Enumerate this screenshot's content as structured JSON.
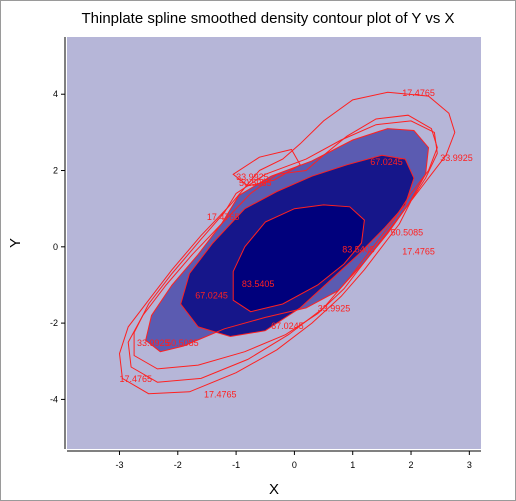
{
  "chart_data": {
    "type": "contour",
    "title": "Thinplate spline smoothed density contour plot of Y vs X",
    "xlabel": "X",
    "ylabel": "Y",
    "xlim": [
      -3.9,
      3.2
    ],
    "ylim": [
      -5.3,
      5.5
    ],
    "x_ticks": [
      -3,
      -2,
      -1,
      0,
      1,
      2,
      3
    ],
    "y_ticks": [
      -4,
      -2,
      0,
      2,
      4
    ],
    "grid": false,
    "colors": {
      "background": "#b6b6d8",
      "contour_line": "#ff2020",
      "fill_level_1": "#5b5bb1",
      "fill_level_2": "#16168a",
      "fill_level_3": "#00007c"
    },
    "levels": [
      {
        "value": 17.4765,
        "filled": false,
        "labels": [
          {
            "text": "17.4765",
            "x": 1.85,
            "y": 3.95
          },
          {
            "text": "17.4765",
            "x": -1.5,
            "y": 0.7
          },
          {
            "text": "17.4765",
            "x": 1.85,
            "y": -0.2
          },
          {
            "text": "17.4765",
            "x": -3.0,
            "y": -3.55
          },
          {
            "text": "17.4765",
            "x": -1.55,
            "y": -3.95
          }
        ],
        "contours": [
          [
            [
              -0.6,
              2.0
            ],
            [
              -0.2,
              2.3
            ],
            [
              0.1,
              2.7
            ],
            [
              0.5,
              3.3
            ],
            [
              1.0,
              3.85
            ],
            [
              1.6,
              4.05
            ],
            [
              2.3,
              3.95
            ],
            [
              2.65,
              3.5
            ],
            [
              2.75,
              3.0
            ],
            [
              2.6,
              2.4
            ],
            [
              2.3,
              1.8
            ],
            [
              2.0,
              1.2
            ],
            [
              1.8,
              0.6
            ],
            [
              1.5,
              0.0
            ],
            [
              1.2,
              -0.6
            ],
            [
              0.8,
              -1.3
            ],
            [
              0.3,
              -2.0
            ],
            [
              -0.3,
              -2.7
            ],
            [
              -1.0,
              -3.3
            ],
            [
              -1.8,
              -3.8
            ],
            [
              -2.5,
              -3.85
            ],
            [
              -2.95,
              -3.45
            ],
            [
              -3.0,
              -2.8
            ],
            [
              -2.85,
              -2.1
            ],
            [
              -2.5,
              -1.4
            ],
            [
              -2.1,
              -0.6
            ],
            [
              -1.6,
              0.3
            ],
            [
              -1.1,
              1.1
            ],
            [
              -0.6,
              2.0
            ]
          ],
          [
            [
              0.2,
              2.0
            ],
            [
              0.5,
              2.4
            ],
            [
              0.9,
              2.9
            ],
            [
              1.4,
              3.35
            ],
            [
              1.95,
              3.45
            ],
            [
              2.35,
              3.1
            ],
            [
              2.45,
              2.6
            ],
            [
              2.3,
              2.0
            ],
            [
              2.0,
              1.4
            ],
            [
              1.7,
              0.7
            ],
            [
              1.35,
              0.0
            ],
            [
              0.95,
              -0.8
            ],
            [
              0.5,
              -1.6
            ],
            [
              -0.1,
              -2.3
            ],
            [
              -0.8,
              -2.95
            ],
            [
              -1.6,
              -3.45
            ],
            [
              -2.35,
              -3.55
            ],
            [
              -2.8,
              -3.15
            ],
            [
              -2.85,
              -2.5
            ],
            [
              -2.6,
              -1.8
            ],
            [
              -2.2,
              -1.0
            ],
            [
              -1.75,
              -0.2
            ],
            [
              -1.25,
              0.6
            ],
            [
              -0.75,
              1.4
            ],
            [
              -0.3,
              1.9
            ],
            [
              0.2,
              2.0
            ]
          ],
          [
            [
              -1.05,
              1.9
            ],
            [
              -0.6,
              2.35
            ],
            [
              -0.05,
              2.55
            ],
            [
              0.1,
              2.15
            ],
            [
              -0.35,
              1.75
            ],
            [
              -0.8,
              1.6
            ],
            [
              -1.05,
              1.9
            ]
          ]
        ]
      },
      {
        "value": 33.9925,
        "filled": false,
        "labels": [
          {
            "text": "33.9925",
            "x": -1.0,
            "y": 1.75
          },
          {
            "text": "33.9925",
            "x": 2.5,
            "y": 2.25
          },
          {
            "text": "33.9925",
            "x": 0.4,
            "y": -1.7
          },
          {
            "text": "33.9925",
            "x": -2.7,
            "y": -2.6
          }
        ],
        "contours": [
          [
            [
              -1.0,
              1.4
            ],
            [
              -0.5,
              1.9
            ],
            [
              0.2,
              2.3
            ],
            [
              0.8,
              2.8
            ],
            [
              1.4,
              3.2
            ],
            [
              2.0,
              3.3
            ],
            [
              2.4,
              3.0
            ],
            [
              2.45,
              2.45
            ],
            [
              2.25,
              1.8
            ],
            [
              1.95,
              1.1
            ],
            [
              1.6,
              0.4
            ],
            [
              1.25,
              -0.3
            ],
            [
              0.85,
              -1.1
            ],
            [
              0.4,
              -1.75
            ],
            [
              -0.15,
              -2.3
            ],
            [
              -0.85,
              -2.75
            ],
            [
              -1.65,
              -3.1
            ],
            [
              -2.35,
              -3.2
            ],
            [
              -2.75,
              -2.85
            ],
            [
              -2.75,
              -2.25
            ],
            [
              -2.5,
              -1.5
            ],
            [
              -2.1,
              -0.7
            ],
            [
              -1.6,
              0.2
            ],
            [
              -1.2,
              0.9
            ],
            [
              -1.0,
              1.4
            ]
          ]
        ]
      },
      {
        "value": 50.5085,
        "filled": true,
        "fill": "#5b5bb1",
        "labels": [
          {
            "text": "50.5085",
            "x": -0.95,
            "y": 1.6
          },
          {
            "text": "50.5085",
            "x": 1.65,
            "y": 0.3
          },
          {
            "text": "50.5085",
            "x": -2.2,
            "y": -2.6
          }
        ],
        "contours": [
          [
            [
              -0.95,
              1.35
            ],
            [
              -0.4,
              1.85
            ],
            [
              0.3,
              2.25
            ],
            [
              1.0,
              2.8
            ],
            [
              1.6,
              3.1
            ],
            [
              2.05,
              3.05
            ],
            [
              2.3,
              2.6
            ],
            [
              2.25,
              1.9
            ],
            [
              1.95,
              1.1
            ],
            [
              1.6,
              0.35
            ],
            [
              1.2,
              -0.4
            ],
            [
              0.75,
              -1.15
            ],
            [
              0.2,
              -1.6
            ],
            [
              -0.5,
              -1.85
            ],
            [
              -1.2,
              -2.15
            ],
            [
              -1.9,
              -2.6
            ],
            [
              -2.3,
              -2.75
            ],
            [
              -2.55,
              -2.45
            ],
            [
              -2.45,
              -1.8
            ],
            [
              -2.1,
              -1.0
            ],
            [
              -1.65,
              -0.2
            ],
            [
              -1.25,
              0.6
            ],
            [
              -0.95,
              1.35
            ]
          ]
        ]
      },
      {
        "value": 67.0245,
        "filled": true,
        "fill": "#16168a",
        "labels": [
          {
            "text": "67.0245",
            "x": 1.3,
            "y": 2.15
          },
          {
            "text": "67.0245",
            "x": -1.7,
            "y": -1.35
          },
          {
            "text": "67.0245",
            "x": -0.4,
            "y": -2.15
          }
        ],
        "contours": [
          [
            [
              -0.85,
              1.0
            ],
            [
              -0.3,
              1.45
            ],
            [
              0.3,
              1.85
            ],
            [
              0.9,
              2.15
            ],
            [
              1.5,
              2.4
            ],
            [
              1.9,
              2.3
            ],
            [
              2.05,
              1.8
            ],
            [
              1.9,
              1.1
            ],
            [
              1.55,
              0.5
            ],
            [
              1.1,
              -0.2
            ],
            [
              0.6,
              -0.9
            ],
            [
              0.1,
              -1.6
            ],
            [
              -0.5,
              -2.2
            ],
            [
              -1.1,
              -2.35
            ],
            [
              -1.65,
              -2.1
            ],
            [
              -1.95,
              -1.5
            ],
            [
              -1.8,
              -0.7
            ],
            [
              -1.4,
              0.1
            ],
            [
              -0.85,
              1.0
            ]
          ]
        ]
      },
      {
        "value": 83.5405,
        "filled": true,
        "fill": "#00007c",
        "labels": [
          {
            "text": "83.5405",
            "x": 0.82,
            "y": -0.15
          },
          {
            "text": "83.5405",
            "x": -0.9,
            "y": -1.05
          }
        ],
        "contours": [
          [
            [
              -0.5,
              0.65
            ],
            [
              0.0,
              1.0
            ],
            [
              0.5,
              1.1
            ],
            [
              0.95,
              1.05
            ],
            [
              1.2,
              0.7
            ],
            [
              1.15,
              0.1
            ],
            [
              0.85,
              -0.45
            ],
            [
              0.4,
              -1.0
            ],
            [
              -0.2,
              -1.5
            ],
            [
              -0.75,
              -1.7
            ],
            [
              -1.05,
              -1.4
            ],
            [
              -1.05,
              -0.65
            ],
            [
              -0.85,
              0.0
            ],
            [
              -0.5,
              0.65
            ]
          ]
        ]
      }
    ]
  }
}
